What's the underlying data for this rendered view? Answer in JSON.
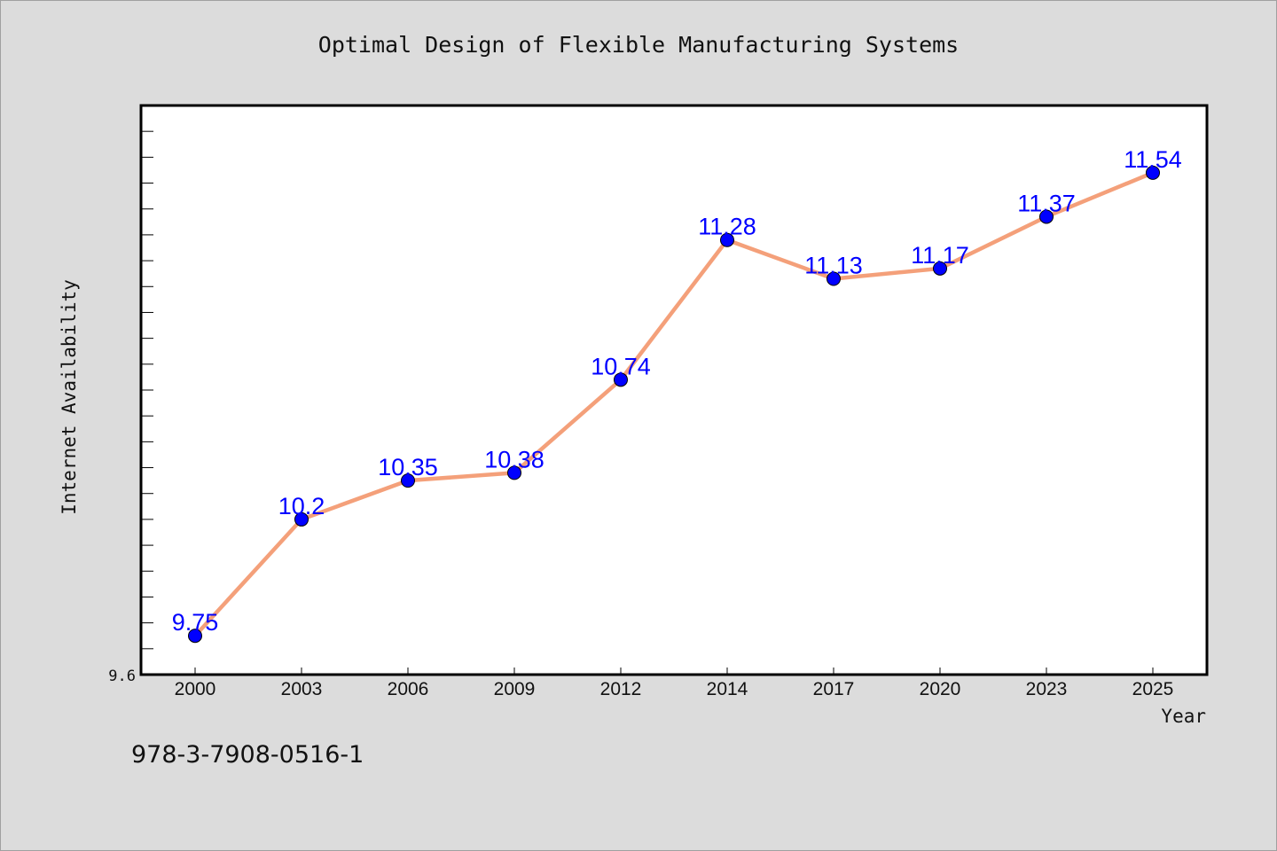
{
  "colors": {
    "background": "#dcdcdc",
    "plot_background": "#ffffff",
    "line": "#f4a07a",
    "marker": "#0000ff",
    "data_label": "#0000ff"
  },
  "isbn": "978-3-7908-0516-1",
  "chart_data": {
    "type": "line",
    "title": "Optimal Design of Flexible Manufacturing Systems",
    "xlabel": "Year",
    "ylabel": "Internet Availability",
    "categories": [
      "2000",
      "2003",
      "2006",
      "2009",
      "2012",
      "2014",
      "2017",
      "2020",
      "2023",
      "2025"
    ],
    "series": [
      {
        "values": [
          9.75,
          10.2,
          10.35,
          10.38,
          10.74,
          11.28,
          11.13,
          11.17,
          11.37,
          11.54
        ],
        "labels": [
          "9.75",
          "10.2",
          "10.35",
          "10.38",
          "10.74",
          "11.28",
          "11.13",
          "11.17",
          "11.37",
          "11.54"
        ]
      }
    ],
    "ylim": [
      9.6,
      11.8
    ],
    "yticks_labeled": [
      {
        "value": 9.6,
        "label": "9.6"
      }
    ],
    "y_minor_tick_step": 0.1,
    "grid": false,
    "legend": "none"
  }
}
